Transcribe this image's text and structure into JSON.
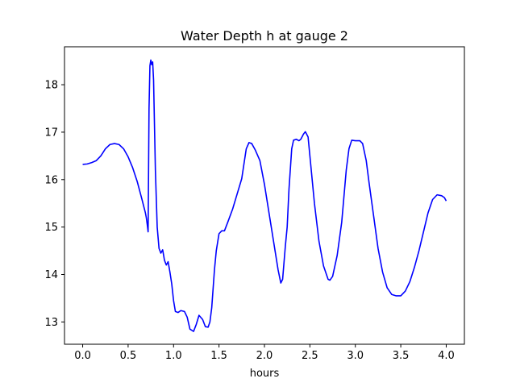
{
  "chart_data": {
    "type": "line",
    "title": "Water Depth h at gauge 2",
    "xlabel": "hours",
    "ylabel": "",
    "xlim": [
      -0.2,
      4.2
    ],
    "ylim": [
      12.53,
      18.8
    ],
    "xticks": [
      0.0,
      0.5,
      1.0,
      1.5,
      2.0,
      2.5,
      3.0,
      3.5,
      4.0
    ],
    "xtick_labels": [
      "0.0",
      "0.5",
      "1.0",
      "1.5",
      "2.0",
      "2.5",
      "3.0",
      "3.5",
      "4.0"
    ],
    "yticks": [
      13,
      14,
      15,
      16,
      17,
      18
    ],
    "ytick_labels": [
      "13",
      "14",
      "15",
      "16",
      "17",
      "18"
    ],
    "grid": false,
    "line_color": "#0000ff",
    "series": [
      {
        "x": [
          0.0,
          0.05,
          0.1,
          0.15,
          0.2,
          0.25,
          0.3,
          0.35,
          0.4,
          0.45,
          0.5,
          0.55,
          0.6,
          0.65,
          0.69,
          0.7,
          0.71,
          0.72,
          0.73,
          0.74,
          0.75,
          0.76,
          0.77,
          0.78,
          0.8,
          0.82,
          0.84,
          0.86,
          0.88,
          0.9,
          0.92,
          0.94,
          0.96,
          0.98,
          1.0,
          1.02,
          1.05,
          1.08,
          1.12,
          1.15,
          1.18,
          1.22,
          1.25,
          1.28,
          1.32,
          1.35,
          1.38,
          1.4,
          1.42,
          1.45,
          1.47,
          1.5,
          1.53,
          1.56,
          1.6,
          1.65,
          1.7,
          1.75,
          1.78,
          1.8,
          1.83,
          1.86,
          1.9,
          1.95,
          2.0,
          2.05,
          2.1,
          2.15,
          2.18,
          2.2,
          2.23,
          2.25,
          2.27,
          2.3,
          2.32,
          2.35,
          2.38,
          2.4,
          2.43,
          2.45,
          2.48,
          2.5,
          2.55,
          2.6,
          2.65,
          2.7,
          2.72,
          2.75,
          2.8,
          2.85,
          2.9,
          2.93,
          2.96,
          3.0,
          3.05,
          3.08,
          3.12,
          3.15,
          3.2,
          3.25,
          3.3,
          3.35,
          3.4,
          3.45,
          3.5,
          3.55,
          3.6,
          3.65,
          3.7,
          3.75,
          3.8,
          3.85,
          3.9,
          3.95,
          3.98,
          4.0
        ],
        "y": [
          16.32,
          16.33,
          16.36,
          16.4,
          16.5,
          16.65,
          16.74,
          16.76,
          16.74,
          16.65,
          16.48,
          16.25,
          15.96,
          15.6,
          15.3,
          15.2,
          15.06,
          14.9,
          17.5,
          18.4,
          18.52,
          18.42,
          18.48,
          18.1,
          16.2,
          15.0,
          14.55,
          14.45,
          14.52,
          14.3,
          14.2,
          14.27,
          14.05,
          13.8,
          13.45,
          13.22,
          13.2,
          13.24,
          13.22,
          13.1,
          12.85,
          12.8,
          12.95,
          13.14,
          13.05,
          12.9,
          12.89,
          13.0,
          13.3,
          14.1,
          14.5,
          14.86,
          14.92,
          14.92,
          15.12,
          15.38,
          15.7,
          16.02,
          16.4,
          16.65,
          16.78,
          16.76,
          16.62,
          16.4,
          15.9,
          15.3,
          14.7,
          14.1,
          13.82,
          13.9,
          14.6,
          15.0,
          15.8,
          16.65,
          16.83,
          16.85,
          16.82,
          16.85,
          16.96,
          17.01,
          16.9,
          16.5,
          15.5,
          14.7,
          14.18,
          13.9,
          13.88,
          13.96,
          14.4,
          15.1,
          16.2,
          16.65,
          16.83,
          16.82,
          16.82,
          16.76,
          16.4,
          15.95,
          15.25,
          14.55,
          14.05,
          13.72,
          13.58,
          13.55,
          13.55,
          13.65,
          13.85,
          14.15,
          14.5,
          14.9,
          15.3,
          15.58,
          15.68,
          15.66,
          15.62,
          15.55
        ]
      }
    ]
  }
}
